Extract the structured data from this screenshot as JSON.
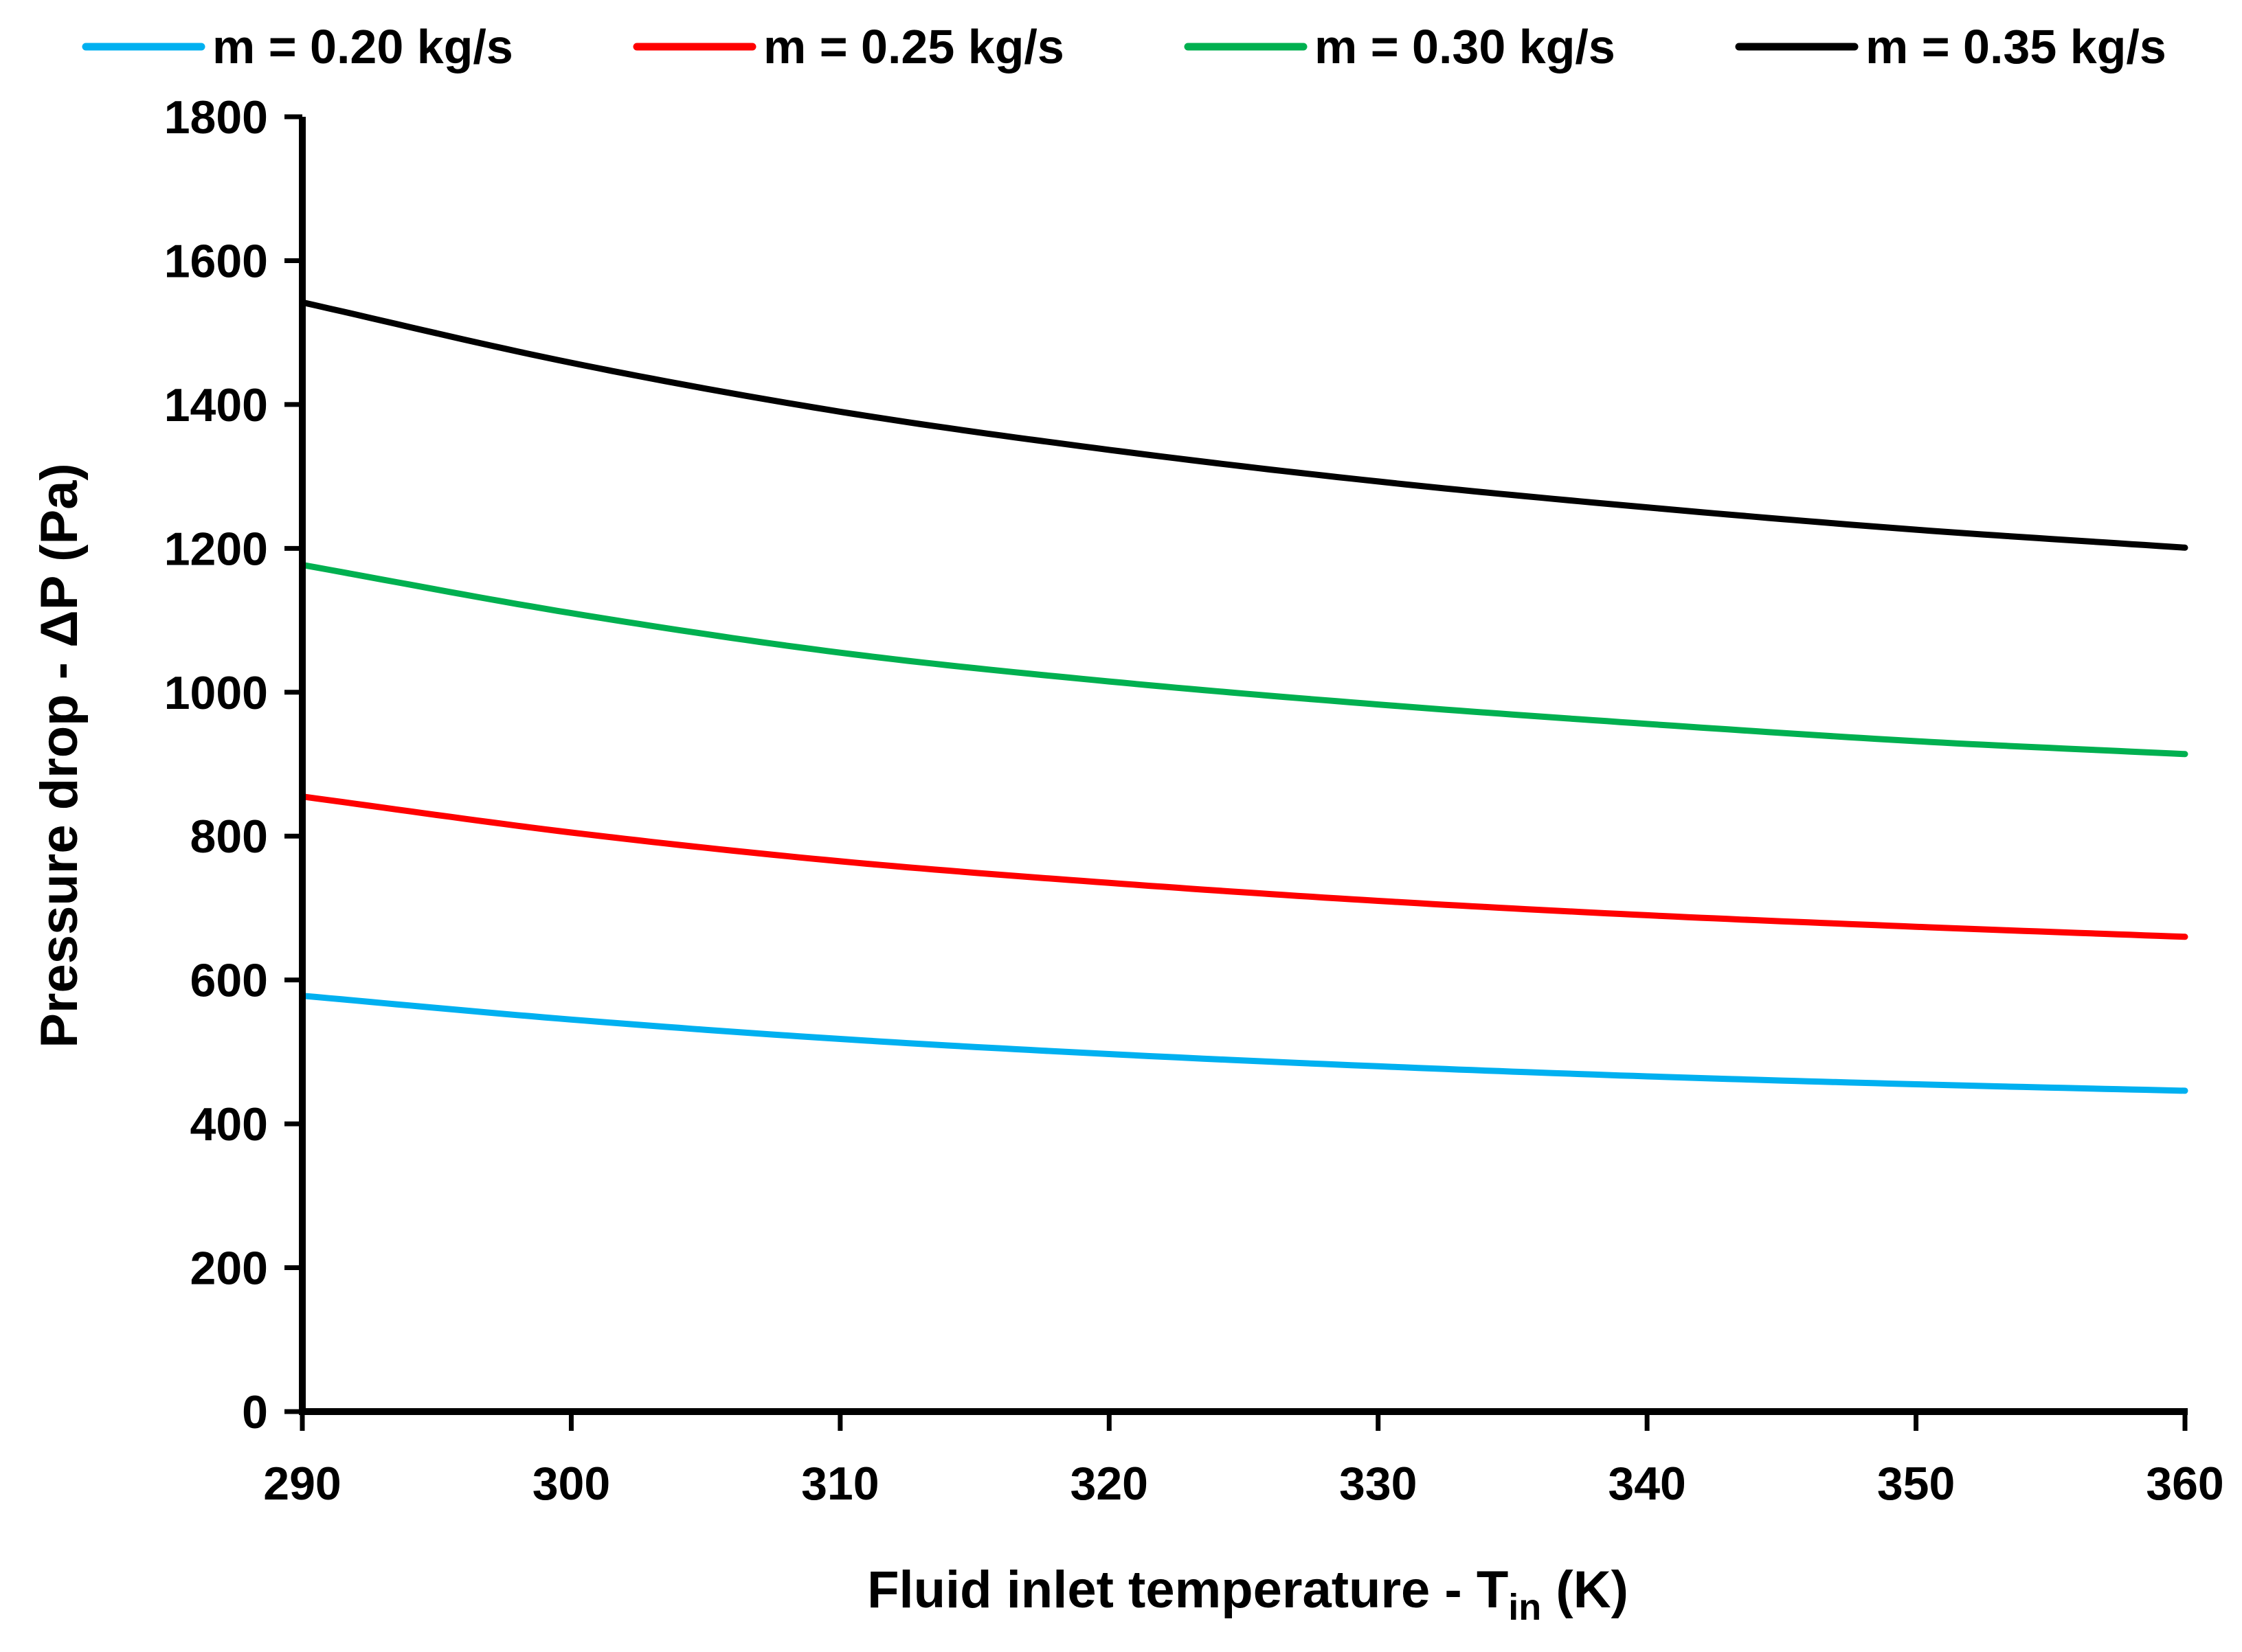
{
  "chart_data": {
    "type": "line",
    "title": "",
    "xlabel_main": "Fluid inlet temperature - T",
    "xlabel_sub": "in",
    "xlabel_unit": " (K)",
    "ylabel": "Pressure drop - ΔP (Pa)",
    "xlim": [
      290,
      360
    ],
    "ylim": [
      0,
      1800
    ],
    "x_ticks": [
      290,
      300,
      310,
      320,
      330,
      340,
      350,
      360
    ],
    "x_tick_labels": [
      "290",
      "300",
      "310",
      "320",
      "330",
      "340",
      "350",
      "360"
    ],
    "y_ticks": [
      0,
      200,
      400,
      600,
      800,
      1000,
      1200,
      1400,
      1600,
      1800
    ],
    "y_tick_labels": [
      "0",
      "200",
      "400",
      "600",
      "800",
      "1000",
      "1200",
      "1400",
      "1600",
      "1800"
    ],
    "grid": false,
    "legend_position": "top",
    "x": [
      290,
      300,
      310,
      320,
      330,
      340,
      350,
      360
    ],
    "series": [
      {
        "name": "m = 0.20 kg/s",
        "color": "#00B0F0",
        "values": [
          578,
          545,
          518,
          497,
          480,
          466,
          455,
          446
        ]
      },
      {
        "name": "m = 0.25 kg/s",
        "color": "#FF0000",
        "values": [
          855,
          805,
          765,
          735,
          710,
          690,
          674,
          660
        ]
      },
      {
        "name": "m = 0.30 kg/s",
        "color": "#00B050",
        "values": [
          1177,
          1110,
          1055,
          1015,
          983,
          956,
          932,
          914
        ]
      },
      {
        "name": "m = 0.35 kg/s",
        "color": "#000000",
        "values": [
          1542,
          1458,
          1390,
          1337,
          1293,
          1257,
          1226,
          1201
        ]
      }
    ]
  }
}
